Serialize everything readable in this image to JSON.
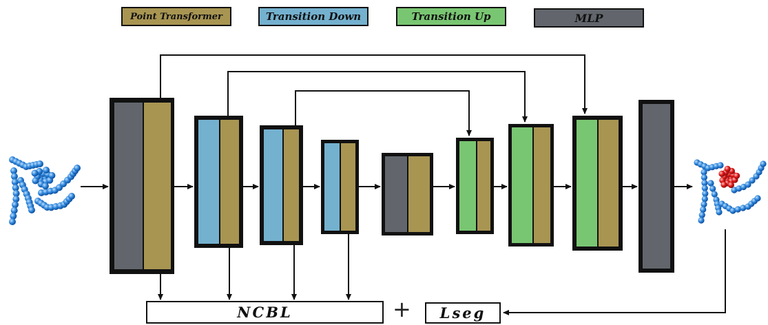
{
  "legend": {
    "point_transformer": "Point Transformer",
    "transition_down": "Transition Down",
    "transition_up": "Transition Up",
    "mlp": "MLP"
  },
  "losses": {
    "ncbl": "NCBL",
    "plus": "+",
    "lseg": "Lseg"
  },
  "colors": {
    "point_transformer": "#a89552",
    "transition_down": "#74b1cf",
    "transition_up": "#79c672",
    "mlp": "#62666c",
    "point_cloud": "#2a7fd6",
    "highlight": "#e01a1a"
  }
}
